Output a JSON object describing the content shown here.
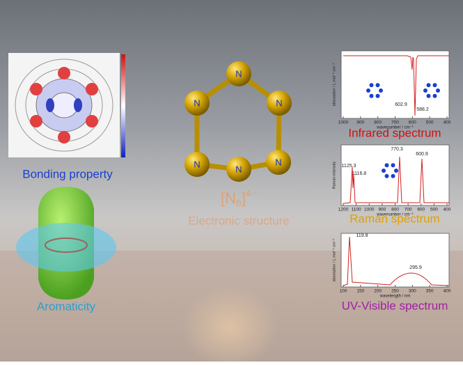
{
  "bonding": {
    "caption": "Bonding property"
  },
  "aromaticity": {
    "caption": "Aromaticity"
  },
  "structure": {
    "formula": {
      "base": "[N",
      "sub": "6",
      "close": "]",
      "sup": "4−"
    },
    "caption": "Electronic structure",
    "atoms": [
      "N",
      "N",
      "N",
      "N",
      "N",
      "N"
    ]
  },
  "spectra": [
    {
      "caption": "Infrared spectrum",
      "ylabel": "absorption / L mol⁻¹ cm⁻¹",
      "xlabel": "wavenumber / cm⁻¹",
      "xticks": [
        "1000",
        "900",
        "800",
        "700",
        "600",
        "500",
        "400"
      ],
      "peaks": [
        "602.9",
        "588.2"
      ]
    },
    {
      "caption": "Raman spectrum",
      "ylabel": "Raman intensity",
      "xlabel": "wavenumber / cm⁻¹",
      "xticks": [
        "1200",
        "1100",
        "1000",
        "900",
        "800",
        "700",
        "600",
        "500",
        "400"
      ],
      "peaks": [
        "1125.3",
        "1116.8",
        "770.3",
        "600.9"
      ]
    },
    {
      "caption": "UV-Visible spectrum",
      "ylabel": "absorption / L mol⁻¹ cm⁻¹",
      "xlabel": "wavelength / nm",
      "xticks": [
        "100",
        "150",
        "200",
        "250",
        "300",
        "350",
        "400"
      ],
      "peaks": [
        "119.8",
        "295.9"
      ]
    }
  ]
}
